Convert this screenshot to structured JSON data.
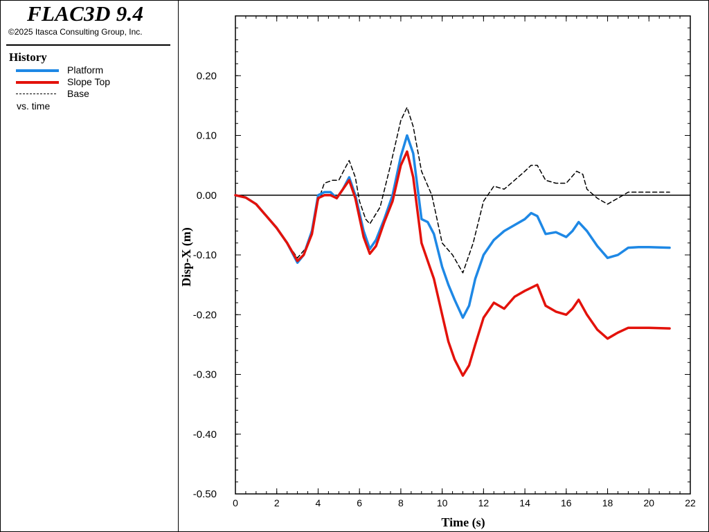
{
  "app": {
    "title": "FLAC3D 9.4",
    "copyright": "©2025 Itasca Consulting Group, Inc."
  },
  "legend": {
    "heading": "History",
    "items": [
      {
        "label": "Platform",
        "color": "#1e88e5",
        "style": "solid"
      },
      {
        "label": "Slope Top",
        "color": "#e3120b",
        "style": "solid"
      },
      {
        "label": "Base",
        "color": "#000000",
        "style": "dashed"
      }
    ],
    "vs_label": "vs. time"
  },
  "chart_data": {
    "type": "line",
    "xlabel": "Time (s)",
    "ylabel": "Disp-X (m)",
    "xlim": [
      0,
      22
    ],
    "ylim": [
      -0.5,
      0.3
    ],
    "x_ticks": [
      0,
      2,
      4,
      6,
      8,
      10,
      12,
      14,
      16,
      18,
      20,
      22
    ],
    "x_tick_labels": [
      "0",
      "2",
      "4",
      "6",
      "8",
      "10",
      "12",
      "14",
      "16",
      "18",
      "20",
      "22"
    ],
    "y_ticks": [
      -0.5,
      -0.4,
      -0.3,
      -0.2,
      -0.1,
      0.0,
      0.1,
      0.2
    ],
    "y_tick_labels": [
      "-0.50",
      "-0.40",
      "-0.30",
      "-0.20",
      "-0.10",
      "0.00",
      "0.10",
      "0.20"
    ],
    "zero_line": true,
    "grid": false,
    "series": [
      {
        "name": "Base",
        "color": "#000000",
        "style": "dashed",
        "x": [
          0,
          0.5,
          1,
          1.5,
          2,
          2.5,
          3,
          3.5,
          4,
          4.3,
          4.7,
          5,
          5.3,
          5.5,
          5.8,
          6,
          6.3,
          6.5,
          7,
          7.5,
          8,
          8.3,
          8.6,
          9,
          9.5,
          10,
          10.5,
          11,
          11.5,
          12,
          12.5,
          13,
          13.5,
          14,
          14.3,
          14.6,
          15,
          15.5,
          16,
          16.5,
          16.8,
          17,
          17.5,
          18,
          18.5,
          19,
          19.5,
          20,
          21
        ],
        "y": [
          0.0,
          -0.004,
          -0.015,
          -0.035,
          -0.055,
          -0.08,
          -0.105,
          -0.085,
          -0.01,
          0.02,
          0.025,
          0.025,
          0.045,
          0.058,
          0.03,
          -0.01,
          -0.04,
          -0.048,
          -0.02,
          0.05,
          0.125,
          0.147,
          0.115,
          0.04,
          0.0,
          -0.08,
          -0.1,
          -0.13,
          -0.08,
          -0.01,
          0.015,
          0.01,
          0.025,
          0.04,
          0.05,
          0.05,
          0.025,
          0.02,
          0.02,
          0.04,
          0.035,
          0.01,
          -0.005,
          -0.015,
          -0.005,
          0.005,
          0.005,
          0.005,
          0.005
        ]
      },
      {
        "name": "Platform",
        "color": "#1e88e5",
        "style": "solid",
        "x": [
          0,
          0.5,
          1,
          1.5,
          2,
          2.5,
          3,
          3.3,
          3.7,
          4,
          4.3,
          4.6,
          4.9,
          5.2,
          5.5,
          5.8,
          6.2,
          6.5,
          6.8,
          7.2,
          7.6,
          8,
          8.3,
          8.6,
          9,
          9.3,
          9.6,
          10,
          10.3,
          10.6,
          11,
          11.3,
          11.6,
          12,
          12.5,
          13,
          13.5,
          14,
          14.3,
          14.6,
          15,
          15.5,
          16,
          16.3,
          16.6,
          17,
          17.5,
          18,
          18.5,
          19,
          19.5,
          20,
          21
        ],
        "y": [
          0.0,
          -0.004,
          -0.015,
          -0.035,
          -0.055,
          -0.08,
          -0.113,
          -0.1,
          -0.06,
          0.0,
          0.005,
          0.005,
          -0.005,
          0.01,
          0.03,
          0.0,
          -0.06,
          -0.09,
          -0.075,
          -0.04,
          0.0,
          0.065,
          0.1,
          0.07,
          -0.04,
          -0.045,
          -0.065,
          -0.12,
          -0.15,
          -0.175,
          -0.205,
          -0.185,
          -0.14,
          -0.1,
          -0.075,
          -0.06,
          -0.05,
          -0.04,
          -0.03,
          -0.035,
          -0.065,
          -0.062,
          -0.07,
          -0.06,
          -0.045,
          -0.06,
          -0.085,
          -0.105,
          -0.1,
          -0.088,
          -0.087,
          -0.087,
          -0.088
        ]
      },
      {
        "name": "Slope Top",
        "color": "#e3120b",
        "style": "solid",
        "x": [
          0,
          0.5,
          1,
          1.5,
          2,
          2.5,
          3,
          3.3,
          3.7,
          4,
          4.3,
          4.6,
          4.9,
          5.2,
          5.5,
          5.8,
          6.2,
          6.5,
          6.8,
          7.2,
          7.6,
          8,
          8.3,
          8.6,
          9,
          9.3,
          9.6,
          10,
          10.3,
          10.6,
          11,
          11.3,
          11.6,
          12,
          12.5,
          13,
          13.5,
          14,
          14.3,
          14.6,
          15,
          15.5,
          16,
          16.3,
          16.6,
          17,
          17.5,
          18,
          18.5,
          19,
          19.5,
          20,
          21
        ],
        "y": [
          0.0,
          -0.004,
          -0.015,
          -0.035,
          -0.055,
          -0.08,
          -0.11,
          -0.1,
          -0.065,
          -0.005,
          0.0,
          0.0,
          -0.005,
          0.01,
          0.025,
          -0.005,
          -0.07,
          -0.098,
          -0.085,
          -0.045,
          -0.01,
          0.05,
          0.073,
          0.03,
          -0.08,
          -0.11,
          -0.14,
          -0.2,
          -0.245,
          -0.275,
          -0.302,
          -0.285,
          -0.25,
          -0.205,
          -0.18,
          -0.19,
          -0.17,
          -0.16,
          -0.155,
          -0.15,
          -0.185,
          -0.195,
          -0.2,
          -0.19,
          -0.175,
          -0.2,
          -0.225,
          -0.24,
          -0.23,
          -0.222,
          -0.222,
          -0.222,
          -0.223
        ]
      }
    ]
  }
}
